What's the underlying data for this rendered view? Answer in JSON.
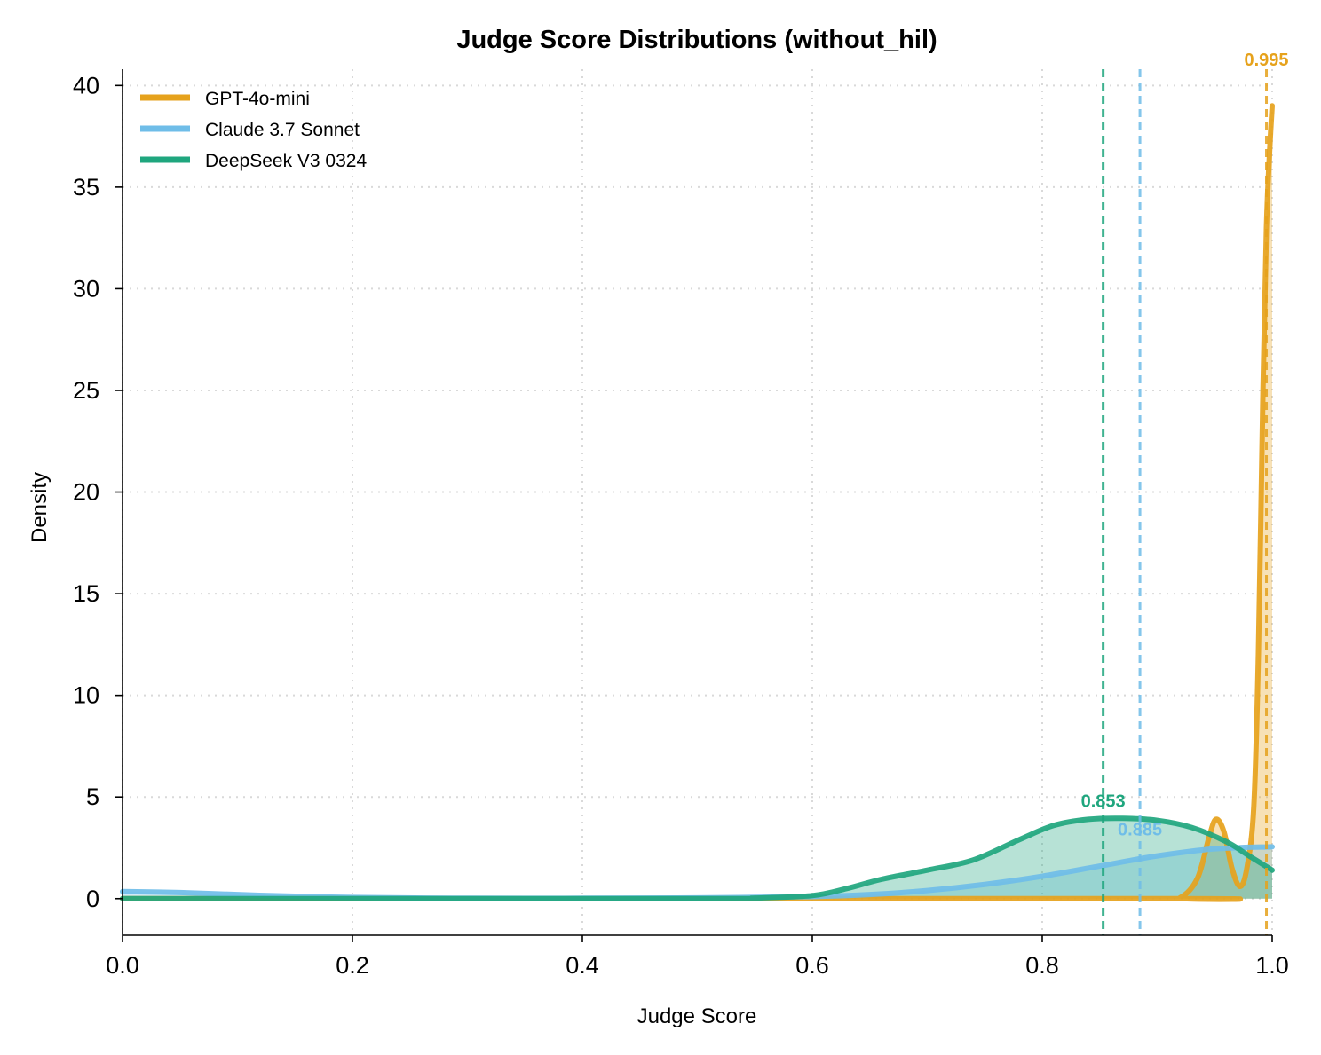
{
  "chart_data": {
    "type": "area",
    "title": "Judge Score Distributions (without_hil)",
    "xlabel": "Judge Score",
    "ylabel": "Density",
    "xlim": [
      0.0,
      1.0
    ],
    "ylim": [
      -1.8,
      40.8
    ],
    "xticks": [
      "0.0",
      "0.2",
      "0.4",
      "0.6",
      "0.8",
      "1.0"
    ],
    "yticks": [
      "0",
      "5",
      "10",
      "15",
      "20",
      "25",
      "30",
      "35",
      "40"
    ],
    "grid": true,
    "legend_position": "top-left",
    "series": [
      {
        "name": "GPT-4o-mini",
        "color": "#E6A21C",
        "mean": 0.995,
        "mean_label": "0.995",
        "x": [
          0.0,
          0.9,
          0.92,
          0.935,
          0.945,
          0.951,
          0.958,
          0.965,
          0.972,
          0.978,
          0.984,
          0.988,
          0.992,
          0.995,
          0.998,
          1.0
        ],
        "y": [
          0,
          0,
          0.05,
          1.0,
          3.0,
          3.9,
          3.3,
          1.5,
          0.6,
          1.5,
          4.5,
          12,
          25,
          33,
          37,
          39
        ]
      },
      {
        "name": "Claude 3.7 Sonnet",
        "color": "#6FBDE8",
        "mean": 0.885,
        "mean_label": "0.885",
        "x": [
          0.0,
          0.05,
          0.1,
          0.15,
          0.2,
          0.3,
          0.4,
          0.5,
          0.6,
          0.65,
          0.7,
          0.75,
          0.8,
          0.85,
          0.9,
          0.95,
          1.0
        ],
        "y": [
          0.35,
          0.3,
          0.2,
          0.12,
          0.06,
          0.02,
          0.02,
          0.04,
          0.1,
          0.2,
          0.4,
          0.7,
          1.1,
          1.6,
          2.1,
          2.45,
          2.55
        ]
      },
      {
        "name": "DeepSeek V3 0324",
        "color": "#1FA67E",
        "mean": 0.853,
        "mean_label": "0.853",
        "x": [
          0.0,
          0.5,
          0.55,
          0.6,
          0.63,
          0.66,
          0.7,
          0.74,
          0.78,
          0.81,
          0.84,
          0.87,
          0.9,
          0.93,
          0.96,
          0.98,
          1.0
        ],
        "y": [
          0,
          0,
          0.03,
          0.15,
          0.5,
          0.95,
          1.4,
          1.9,
          2.9,
          3.6,
          3.9,
          3.95,
          3.85,
          3.5,
          2.8,
          2.1,
          1.4
        ]
      }
    ]
  }
}
